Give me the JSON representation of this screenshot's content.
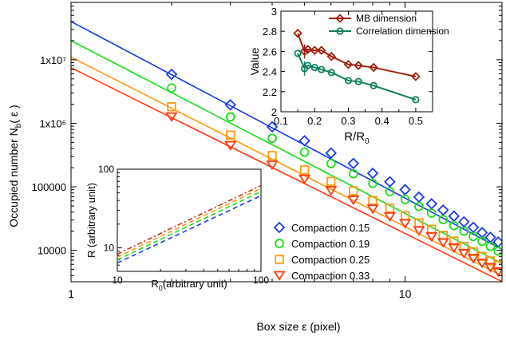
{
  "chart_data": [
    {
      "type": "scatter",
      "xlabel": "Box size  ε  (pixel)",
      "ylabel_main": "Occupied number N",
      "ylabel_sub": "b",
      "ylabel_tail": "( ε )",
      "xscale": "log",
      "yscale": "log",
      "xlim": [
        1,
        19.5
      ],
      "ylim": [
        3200,
        80000000
      ],
      "xticks": [
        {
          "v": 1,
          "label": "1"
        },
        {
          "v": 10,
          "label": "10"
        }
      ],
      "yticks": [
        {
          "v": 10000,
          "label": "10000"
        },
        {
          "v": 100000,
          "label": "100000"
        },
        {
          "v": 1000000,
          "label": "1x10⁶"
        },
        {
          "v": 10000000,
          "label": "1x10⁷"
        }
      ],
      "legend_position": "lower-right",
      "x": [
        2,
        3,
        4,
        5,
        6,
        7,
        8,
        9,
        10,
        11,
        12,
        13,
        14,
        15,
        16,
        17,
        18,
        19
      ],
      "series": [
        {
          "name": "Compaction 0.15",
          "color": "#1a3ee6",
          "marker": "diamond",
          "fit_intercept": 40000000,
          "fit_slope": -2.78,
          "values": [
            5900000,
            1950000,
            880000,
            530000,
            340000,
            233000,
            163000,
            120000,
            90000,
            69000,
            54000,
            43000,
            34500,
            28000,
            23000,
            19000,
            16000,
            13500
          ]
        },
        {
          "name": "Compaction 0.19",
          "color": "#18dd18",
          "marker": "circle",
          "fit_intercept": 20000000,
          "fit_slope": -2.72,
          "values": [
            3600000,
            1260000,
            580000,
            350000,
            232000,
            160000,
            113000,
            84000,
            63000,
            49000,
            38500,
            30500,
            24500,
            20000,
            16500,
            13800,
            11500,
            9700
          ]
        },
        {
          "name": "Compaction 0.25",
          "color": "#ff9a10",
          "marker": "square",
          "fit_intercept": 11000000,
          "fit_slope": -2.67,
          "values": [
            1820000,
            650000,
            310000,
            185000,
            122000,
            86000,
            61000,
            46000,
            35000,
            27000,
            21500,
            17200,
            14000,
            11500,
            9500,
            8000,
            6800,
            5800
          ]
        },
        {
          "name": "Compaction 0.33",
          "color": "#ff3a10",
          "marker": "triangle-down",
          "fit_intercept": 7500000,
          "fit_slope": -2.61,
          "values": [
            1270000,
            450000,
            222000,
            133000,
            88000,
            62000,
            45000,
            34000,
            26500,
            20500,
            16500,
            13300,
            11000,
            9000,
            7500,
            6300,
            5400,
            4600
          ]
        }
      ]
    },
    {
      "type": "line",
      "xlabel": "R/R",
      "xlabel_sub": "0",
      "ylabel": "Value",
      "xlim": [
        0.1,
        0.55
      ],
      "ylim": [
        2.0,
        3.0
      ],
      "xticks": [
        0.1,
        0.2,
        0.3,
        0.4,
        0.5
      ],
      "yticks": [
        2.0,
        2.2,
        2.4,
        2.6,
        2.8,
        3.0
      ],
      "legend_position": "top-right",
      "series": [
        {
          "name": "MB dimension",
          "color": "#a02010",
          "marker": "diamond",
          "x": [
            0.15,
            0.17,
            0.18,
            0.2,
            0.22,
            0.25,
            0.3,
            0.33,
            0.375,
            0.5
          ],
          "values": [
            2.78,
            2.6,
            2.62,
            2.61,
            2.61,
            2.55,
            2.47,
            2.46,
            2.44,
            2.35
          ]
        },
        {
          "name": "Correlation dimension",
          "color": "#128060",
          "marker": "circle",
          "x": [
            0.15,
            0.17,
            0.18,
            0.2,
            0.22,
            0.25,
            0.3,
            0.33,
            0.375,
            0.5
          ],
          "values": [
            2.58,
            2.43,
            2.46,
            2.44,
            2.42,
            2.39,
            2.31,
            2.3,
            2.26,
            2.12
          ]
        }
      ]
    },
    {
      "type": "line",
      "xlabel": "R",
      "xlabel_sub": "0",
      "xlabel_tail": "(arbitrary unit)",
      "ylabel": "R (arbitrary unit)",
      "xscale": "log",
      "yscale": "log",
      "xlim": [
        10,
        100
      ],
      "ylim": [
        5,
        100
      ],
      "xticks": [
        10,
        100
      ],
      "yticks": [
        10,
        100
      ],
      "series": [
        {
          "color": "#1a3ee6",
          "dash": "dashed",
          "x": [
            10,
            100
          ],
          "values": [
            6.4,
            46
          ]
        },
        {
          "color": "#18dd18",
          "dash": "dashed",
          "x": [
            10,
            100
          ],
          "values": [
            7.0,
            52
          ]
        },
        {
          "color": "#ff9a10",
          "dash": "dashed",
          "x": [
            10,
            100
          ],
          "values": [
            7.6,
            57
          ]
        },
        {
          "color": "#d03010",
          "dash": "dash-dot",
          "x": [
            10,
            100
          ],
          "values": [
            8.3,
            62
          ]
        }
      ]
    }
  ]
}
